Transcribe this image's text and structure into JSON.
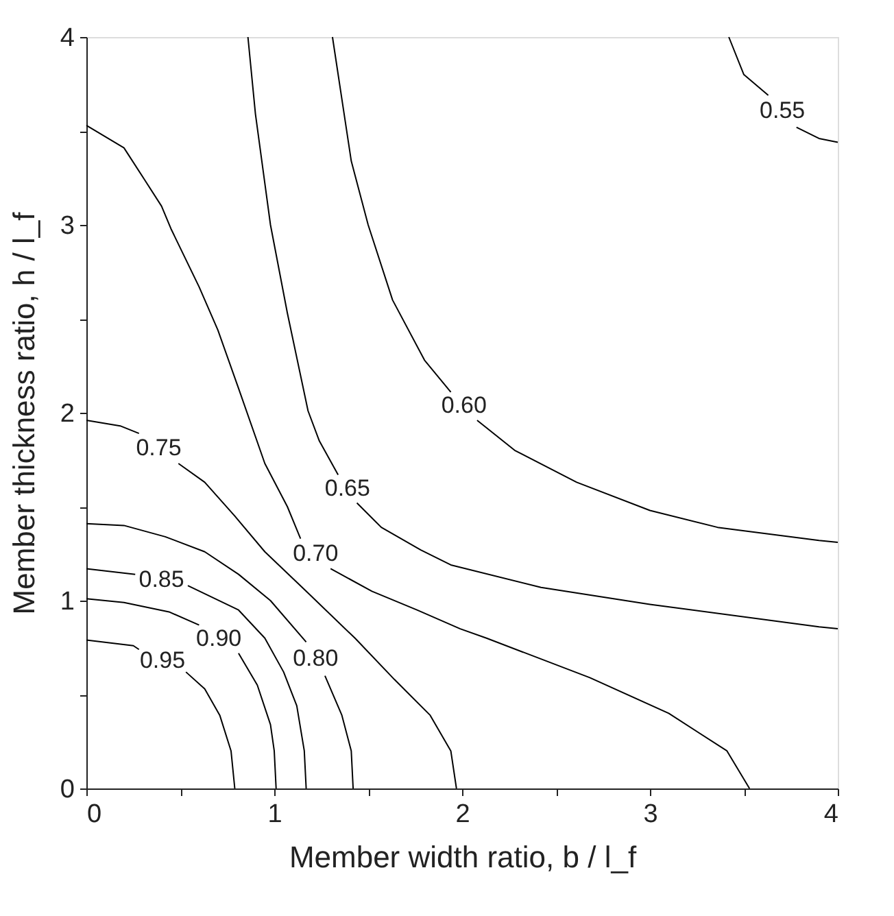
{
  "chart_data": {
    "type": "line",
    "xlabel": "Member width ratio, b / l_f",
    "ylabel": "Member thickness ratio, h / l_f",
    "xlim": [
      0,
      4
    ],
    "ylim": [
      0,
      4
    ],
    "xticks": [
      0,
      {
        "value": 0.5,
        "label": null
      },
      1,
      {
        "value": 1.5,
        "label": null
      },
      2,
      {
        "value": 2.5,
        "label": null
      },
      3,
      {
        "value": 3.5,
        "label": null
      },
      4
    ],
    "yticks": [
      0,
      {
        "value": 0.5,
        "label": null
      },
      1,
      {
        "value": 1.5,
        "label": null
      },
      2,
      {
        "value": 2.5,
        "label": null
      },
      3,
      {
        "value": 3.5,
        "label": null
      },
      4
    ],
    "grid": false,
    "legend": false,
    "marker": "none",
    "line_style": "solid",
    "series": [
      {
        "name": "0.95",
        "color": "#000000",
        "x": [
          0,
          0.25,
          0.28,
          null,
          0.53,
          0.63,
          0.71,
          0.77,
          0.79
        ],
        "values": [
          0.79,
          0.76,
          0.74,
          null,
          0.62,
          0.53,
          0.39,
          0.2,
          0
        ]
      },
      {
        "name": "0.90",
        "color": "#000000",
        "x": [
          0,
          0.2,
          0.44,
          0.6,
          null,
          0.81,
          0.91,
          0.98,
          1.0,
          1.01
        ],
        "values": [
          1.01,
          0.99,
          0.94,
          0.87,
          null,
          0.72,
          0.55,
          0.34,
          0.2,
          0
        ]
      },
      {
        "name": "0.85",
        "color": "#000000",
        "x": [
          0,
          0.26,
          null,
          0.54,
          0.81,
          0.95,
          1.05,
          1.12,
          1.16,
          1.17
        ],
        "values": [
          1.17,
          1.14,
          null,
          1.08,
          0.95,
          0.8,
          0.62,
          0.44,
          0.2,
          0
        ]
      },
      {
        "name": "0.80",
        "color": "#000000",
        "x": [
          0,
          0.2,
          0.42,
          0.63,
          0.81,
          0.98,
          1.17,
          null,
          1.27,
          1.36,
          1.41,
          1.42
        ],
        "values": [
          1.41,
          1.4,
          1.34,
          1.26,
          1.14,
          1.0,
          0.78,
          null,
          0.6,
          0.39,
          0.2,
          0
        ]
      },
      {
        "name": "0.75",
        "color": "#000000",
        "x": [
          0,
          0.18,
          0.28,
          null,
          0.49,
          0.63,
          0.79,
          0.95,
          1.17,
          1.43,
          1.64,
          1.83,
          1.94,
          1.97
        ],
        "values": [
          1.96,
          1.93,
          1.89,
          null,
          1.73,
          1.63,
          1.45,
          1.26,
          1.05,
          0.8,
          0.58,
          0.39,
          0.2,
          0
        ]
      },
      {
        "name": "0.70",
        "color": "#000000",
        "x": [
          0,
          0.2,
          0.31,
          0.4,
          0.45,
          0.6,
          0.7,
          0.81,
          0.95,
          1.07,
          1.14,
          null,
          1.3,
          1.52,
          1.76,
          1.99,
          2.13,
          2.68,
          3.1,
          3.41,
          3.53
        ],
        "values": [
          3.53,
          3.41,
          3.24,
          3.1,
          2.98,
          2.67,
          2.44,
          2.13,
          1.73,
          1.5,
          1.33,
          null,
          1.17,
          1.05,
          0.95,
          0.85,
          0.8,
          0.59,
          0.4,
          0.2,
          0
        ]
      },
      {
        "name": "0.65",
        "color": "#000000",
        "x": [
          0.86,
          0.9,
          0.98,
          1.07,
          1.18,
          1.24,
          1.34,
          null,
          1.44,
          1.57,
          1.78,
          1.94,
          2.42,
          3.0,
          3.9,
          4.0
        ],
        "values": [
          4.0,
          3.59,
          3.0,
          2.53,
          2.01,
          1.85,
          1.67,
          null,
          1.52,
          1.39,
          1.27,
          1.19,
          1.07,
          0.98,
          0.86,
          0.85
        ]
      },
      {
        "name": "0.60",
        "color": "#000000",
        "x": [
          1.31,
          1.41,
          1.5,
          1.63,
          1.8,
          1.94,
          null,
          2.08,
          2.28,
          2.61,
          3.0,
          3.36,
          3.9,
          4.0
        ],
        "values": [
          4.0,
          3.34,
          3.0,
          2.6,
          2.28,
          2.11,
          null,
          1.96,
          1.8,
          1.63,
          1.48,
          1.39,
          1.32,
          1.31
        ]
      },
      {
        "name": "0.55",
        "color": "#000000",
        "x": [
          3.42,
          3.5,
          3.63,
          null,
          3.78,
          3.9,
          4.0
        ],
        "values": [
          4.0,
          3.8,
          3.69,
          null,
          3.52,
          3.46,
          3.44
        ]
      }
    ]
  }
}
